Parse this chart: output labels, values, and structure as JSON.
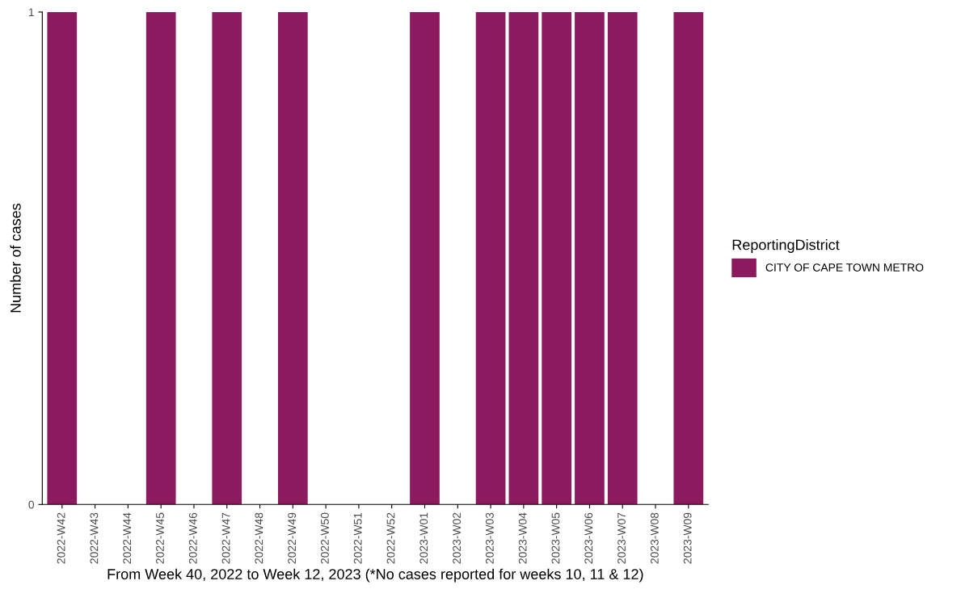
{
  "chart_data": {
    "type": "bar",
    "xlabel": "From Week 40, 2022 to Week 12, 2023 (*No cases reported for weeks 10, 11 & 12)",
    "ylabel": "Number of cases",
    "legend_title": "ReportingDistrict",
    "categories": [
      "2022-W42",
      "2022-W43",
      "2022-W44",
      "2022-W45",
      "2022-W46",
      "2022-W47",
      "2022-W48",
      "2022-W49",
      "2022-W50",
      "2022-W51",
      "2022-W52",
      "2023-W01",
      "2023-W02",
      "2023-W03",
      "2023-W04",
      "2023-W05",
      "2023-W06",
      "2023-W07",
      "2023-W08",
      "2023-W09"
    ],
    "series": [
      {
        "name": "CITY OF CAPE TOWN METRO",
        "color": "#8b1a5e",
        "values": [
          1,
          0,
          0,
          1,
          0,
          1,
          0,
          1,
          0,
          0,
          0,
          1,
          0,
          1,
          1,
          1,
          1,
          1,
          0,
          1
        ]
      }
    ],
    "ylim": [
      0,
      1
    ],
    "yticks": [
      0,
      1
    ],
    "grid": false,
    "legend": "right"
  }
}
